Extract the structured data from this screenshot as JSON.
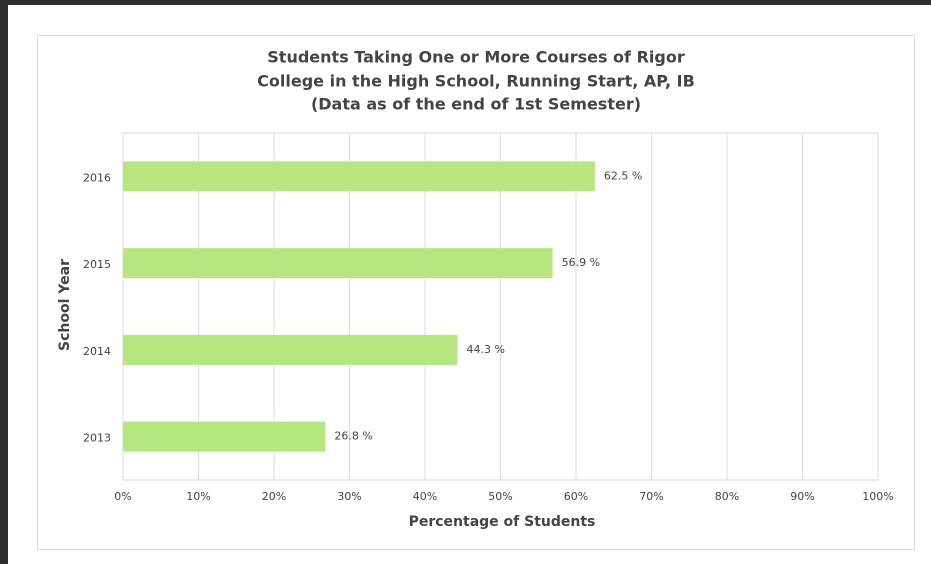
{
  "chart_data": {
    "type": "bar",
    "orientation": "horizontal",
    "title": [
      "Students Taking One or More Courses of Rigor",
      "College in the High School, Running Start, AP, IB",
      "(Data as of the end of 1st Semester)"
    ],
    "categories": [
      "2016",
      "2015",
      "2014",
      "2013"
    ],
    "values": [
      62.5,
      56.9,
      44.3,
      26.8
    ],
    "value_labels": [
      "62.5 %",
      "56.9 %",
      "44.3 %",
      "26.8 %"
    ],
    "color": "#b5e67f",
    "xlim": [
      0,
      100
    ],
    "xticks": [
      {
        "value": 0,
        "label": "0%"
      },
      {
        "value": 10,
        "label": "10%"
      },
      {
        "value": 20,
        "label": "20%"
      },
      {
        "value": 30,
        "label": "30%"
      },
      {
        "value": 40,
        "label": "40%"
      },
      {
        "value": 50,
        "label": "50%"
      },
      {
        "value": 60,
        "label": "60%"
      },
      {
        "value": 70,
        "label": "70%"
      },
      {
        "value": 80,
        "label": "80%"
      },
      {
        "value": 90,
        "label": "90%"
      },
      {
        "value": 100,
        "label": "100%"
      }
    ],
    "xlabel": "Percentage of Students",
    "ylabel": "School Year",
    "grid": true
  }
}
